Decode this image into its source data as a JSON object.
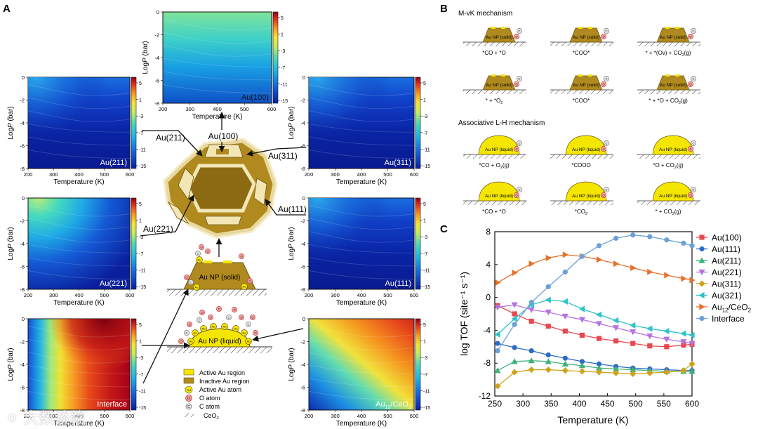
{
  "panel_labels": {
    "a": "A",
    "b": "B",
    "c": "C"
  },
  "contour": {
    "xlabel": "Temperature (K)",
    "ylabel_prefix": "Log",
    "ylabel_italic": "P",
    "ylabel_suffix": " (bar)",
    "xticks": [
      "200",
      "300",
      "400",
      "500",
      "600"
    ],
    "yticks": [
      "0",
      "-2",
      "-4",
      "-6",
      "-8"
    ],
    "cbar_ticks": [
      "5",
      "1",
      "-3",
      "-7",
      "-11",
      "-15"
    ],
    "cbar_ticks_cold": [
      "5",
      "1",
      "-3",
      "-7",
      "-11",
      "-15"
    ],
    "colors": {
      "cold": "#0a1f9c",
      "hot": "#b0001a"
    },
    "maps": {
      "au100": "Au(100)",
      "au211": "Au(211)",
      "au311": "Au(311)",
      "au221": "Au(221)",
      "au111": "Au(111)",
      "interface": "Interface",
      "ceo2_main": "Au",
      "ceo2_sub": "12",
      "ceo2_tail": "/CeO",
      "ceo2_sub2": "2"
    }
  },
  "cluster": {
    "callouts": [
      "Au(100)",
      "Au(211)",
      "Au(311)",
      "Au(111)",
      "Au(221)"
    ],
    "np_solid": "Au NP (solid)",
    "np_liquid": "Au NP (liquid)",
    "colors": {
      "active": "#f5e600",
      "inactive": "#b08a1e",
      "light": "#f3e6b5"
    }
  },
  "legend": {
    "items": [
      "Active Au region",
      "Inactive Au region",
      "Active Au atom",
      "O atom",
      "C atom",
      "CeO"
    ],
    "ceo2_sub": "2",
    "glyphs": {
      "au": "Au",
      "o": "O",
      "c": "C"
    }
  },
  "panel_b": {
    "mvk_title": "M-vK mechanism",
    "lh_title": "Associative L-H mechanism",
    "np_solid": "Au NP (solid)",
    "np_liquid": "Au NP (liquid)",
    "mvk_row1": [
      "*CO + *O",
      "*COO*",
      "* + *(Ov) + CO"
    ],
    "mvk_row1_tail": "(g)",
    "mvk_row2": [
      "* + *O",
      "*COO*",
      "* + *O + CO"
    ],
    "mvk_row2_first_sub": "2",
    "lh_row1": [
      "*CO + O",
      "*COOO",
      "*O + CO"
    ],
    "lh_row2": [
      "*CO + *O",
      "*CO",
      "* + CO"
    ],
    "sub2": "2",
    "gas": "(g)"
  },
  "chart_data": {
    "type": "line",
    "xlabel": "Temperature (K)",
    "ylabel": "log TOF (site⁻¹ s⁻¹)",
    "xlim": [
      250,
      600
    ],
    "ylim": [
      -12,
      8
    ],
    "xticks": [
      250,
      300,
      350,
      400,
      450,
      500,
      550,
      600
    ],
    "yticks": [
      8,
      4,
      0,
      -4,
      -8,
      -12
    ],
    "legend_position": "right",
    "x": [
      255,
      285,
      315,
      345,
      375,
      405,
      435,
      465,
      495,
      525,
      555,
      585,
      600
    ],
    "series": [
      {
        "name": "Au(100)",
        "color": "#e8484f",
        "marker": "square",
        "values": [
          -1.0,
          -2.0,
          -2.9,
          -3.5,
          -4.1,
          -4.6,
          -5.0,
          -5.3,
          -5.6,
          -5.9,
          -6.0,
          -5.8,
          -5.7
        ]
      },
      {
        "name": "Au(111)",
        "color": "#2c6bc4",
        "marker": "circle",
        "values": [
          -5.6,
          -6.1,
          -6.5,
          -7.0,
          -7.4,
          -7.8,
          -8.1,
          -8.4,
          -8.6,
          -8.7,
          -8.8,
          -8.9,
          -8.9
        ]
      },
      {
        "name": "Au(211)",
        "color": "#3fb27a",
        "marker": "triangle-up",
        "values": [
          -8.9,
          -7.8,
          -7.7,
          -7.8,
          -8.1,
          -8.3,
          -8.6,
          -8.7,
          -8.8,
          -8.9,
          -9.0,
          -9.0,
          -9.0
        ]
      },
      {
        "name": "Au(221)",
        "color": "#b573e0",
        "marker": "triangle-down",
        "values": [
          -1.2,
          -0.9,
          -1.5,
          -1.8,
          -2.3,
          -2.7,
          -3.2,
          -3.7,
          -4.2,
          -4.7,
          -5.1,
          -5.4,
          -5.6
        ]
      },
      {
        "name": "Au(311)",
        "color": "#d0a21a",
        "marker": "diamond",
        "values": [
          -10.8,
          -9.1,
          -8.8,
          -8.8,
          -8.9,
          -9.0,
          -9.1,
          -9.2,
          -9.3,
          -9.2,
          -9.1,
          -8.9,
          -8.1
        ]
      },
      {
        "name": "Au(321)",
        "color": "#2cc3c9",
        "marker": "triangle-left",
        "values": [
          -4.5,
          -2.6,
          -0.9,
          -0.3,
          -0.5,
          -1.4,
          -2.1,
          -2.8,
          -3.4,
          -3.8,
          -4.1,
          -4.4,
          -4.6
        ]
      },
      {
        "name": "Au",
        "label_sub": "12",
        "label_tail": "/CeO",
        "label_sub2": "2",
        "color": "#e8702a",
        "marker": "triangle-right",
        "values": [
          1.8,
          3.0,
          4.1,
          4.8,
          5.2,
          5.0,
          4.6,
          4.1,
          3.6,
          3.1,
          2.7,
          2.3,
          2.1
        ]
      },
      {
        "name": "Interface",
        "color": "#6ba0d8",
        "marker": "circle",
        "values": [
          -6.5,
          -3.3,
          -0.6,
          1.3,
          3.1,
          5.0,
          6.3,
          7.2,
          7.6,
          7.4,
          7.0,
          6.6,
          6.3
        ]
      }
    ]
  },
  "watermark": "⚪ 大数谈赣"
}
